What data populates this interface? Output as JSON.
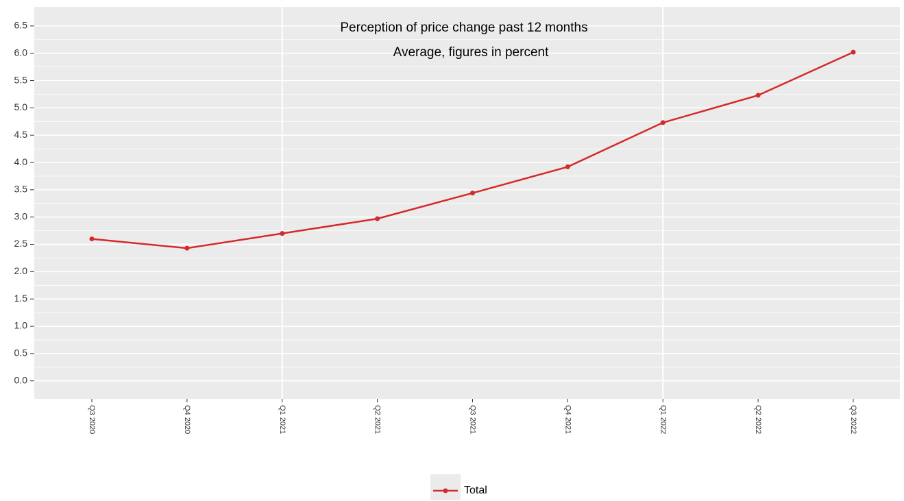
{
  "chart_data": {
    "type": "line",
    "title": "Perception of price change past 12 months",
    "subtitle": "Average, figures in percent",
    "categories": [
      "Q3 2020",
      "Q4 2020",
      "Q1 2021",
      "Q2 2021",
      "Q3 2021",
      "Q4 2021",
      "Q1 2022",
      "Q2 2022",
      "Q3 2022"
    ],
    "series": [
      {
        "name": "Total",
        "color": "#d42a2a",
        "values": [
          2.6,
          2.43,
          2.7,
          2.97,
          3.44,
          3.92,
          4.73,
          5.23,
          6.02
        ]
      }
    ],
    "ylim": [
      -0.33,
      6.85
    ],
    "yticks": [
      {
        "value": 0,
        "label": "0.0"
      },
      0.5,
      {
        "value": 1,
        "label": "1.0"
      },
      1.5,
      {
        "value": 2,
        "label": "2.0"
      },
      2.5,
      {
        "value": 3,
        "label": "3.0"
      },
      3.5,
      {
        "value": 4,
        "label": "4.0"
      },
      4.5,
      {
        "value": 5,
        "label": "5.0"
      },
      5.5,
      {
        "value": 6,
        "label": "6.0"
      },
      6.5
    ],
    "grid": true,
    "legend": "bottom"
  }
}
